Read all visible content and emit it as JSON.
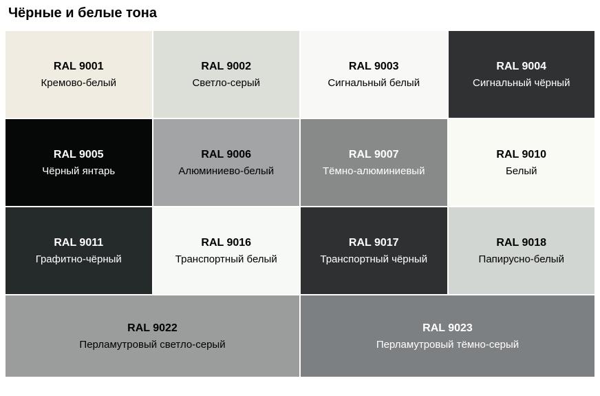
{
  "title": "Чёрные и белые тона",
  "swatches": [
    {
      "code": "RAL 9001",
      "name": "Кремово-белый",
      "bg": "#f0ece1",
      "text": "#000000"
    },
    {
      "code": "RAL 9002",
      "name": "Светло-серый",
      "bg": "#dcdfd8",
      "text": "#000000"
    },
    {
      "code": "RAL 9003",
      "name": "Сигнальный белый",
      "bg": "#f8f9f7",
      "text": "#000000"
    },
    {
      "code": "RAL 9004",
      "name": "Сигнальный чёрный",
      "bg": "#2f3132",
      "text": "#ffffff"
    },
    {
      "code": "RAL 9005",
      "name": "Чёрный янтарь",
      "bg": "#060707",
      "text": "#ffffff"
    },
    {
      "code": "RAL 9006",
      "name": "Алюминиево-белый",
      "bg": "#a3a4a6",
      "text": "#000000"
    },
    {
      "code": "RAL 9007",
      "name": "Тёмно-алюминиевый",
      "bg": "#888989",
      "text": "#ffffff"
    },
    {
      "code": "RAL 9010",
      "name": "Белый",
      "bg": "#f9faf3",
      "text": "#000000"
    },
    {
      "code": "RAL 9011",
      "name": "Графитно-чёрный",
      "bg": "#252a2b",
      "text": "#ffffff"
    },
    {
      "code": "RAL 9016",
      "name": "Транспортный белый",
      "bg": "#f6f9f5",
      "text": "#000000"
    },
    {
      "code": "RAL 9017",
      "name": "Транспортный чёрный",
      "bg": "#2e3032",
      "text": "#ffffff"
    },
    {
      "code": "RAL 9018",
      "name": "Папирусно-белый",
      "bg": "#d1d6d2",
      "text": "#000000"
    },
    {
      "code": "RAL 9022",
      "name": "Перламутровый светло-серый",
      "bg": "#9b9d9d",
      "text": "#000000"
    },
    {
      "code": "RAL 9023",
      "name": "Перламутровый тёмно-серый",
      "bg": "#7d8082",
      "text": "#ffffff"
    }
  ],
  "typography": {
    "title_fontsize": 20,
    "code_fontsize": 16,
    "name_fontsize": 15
  },
  "layout": {
    "columns": 4,
    "rows_main": 3,
    "last_row_columns": 2,
    "swatch_height": 126,
    "gap": 2,
    "background": "#ffffff"
  }
}
